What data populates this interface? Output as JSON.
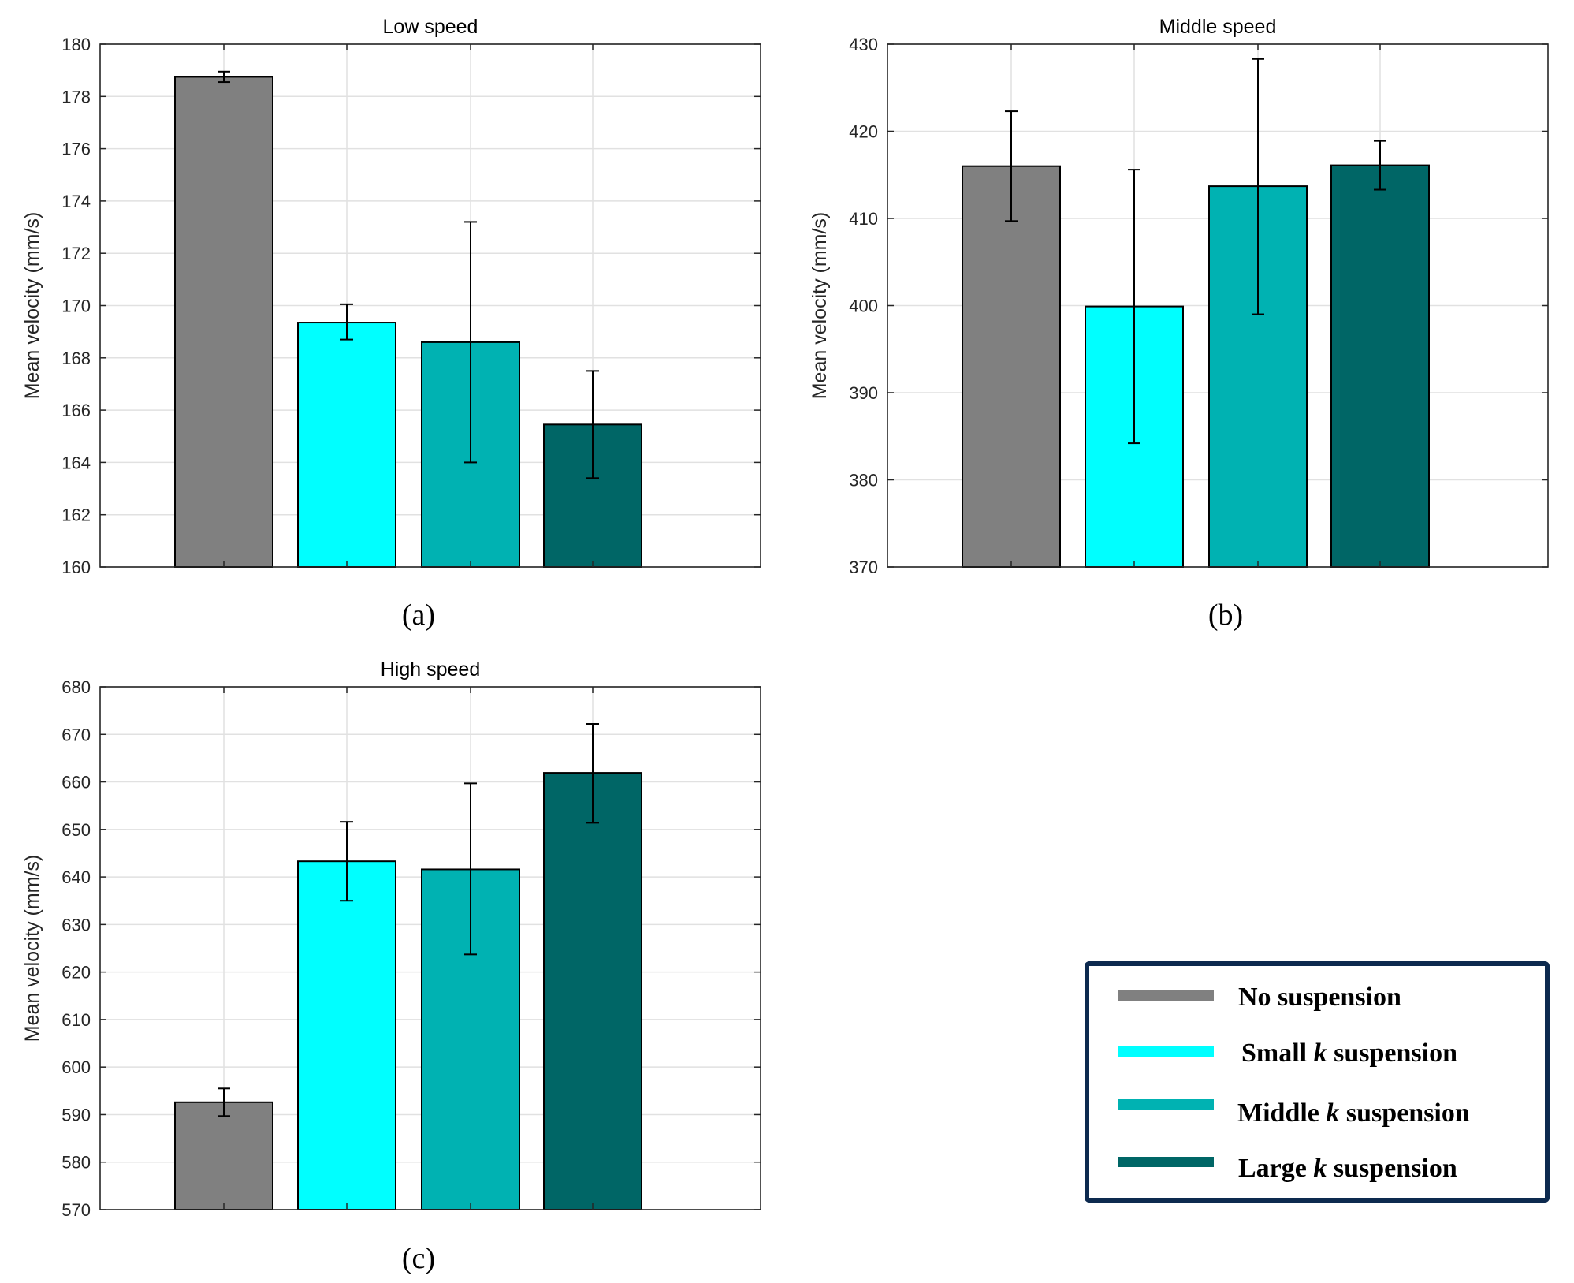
{
  "chart_data": [
    {
      "type": "bar",
      "title": "Low speed",
      "panel_label": "(a)",
      "ylabel": "Mean velocity (mm/s)",
      "ylim": [
        160,
        180
      ],
      "yticks": [
        160,
        162,
        164,
        166,
        168,
        170,
        172,
        174,
        176,
        178,
        180
      ],
      "grid": true,
      "categories": [
        "No suspension",
        "Small k suspension",
        "Middle k suspension",
        "Large k suspension"
      ],
      "values": [
        178.75,
        169.35,
        168.6,
        165.45
      ],
      "error_low": [
        178.55,
        168.7,
        164.0,
        163.4
      ],
      "error_high": [
        178.95,
        170.05,
        173.2,
        167.5
      ]
    },
    {
      "type": "bar",
      "title": "Middle speed",
      "panel_label": "(b)",
      "ylabel": "Mean velocity (mm/s)",
      "ylim": [
        370,
        430
      ],
      "yticks": [
        370,
        380,
        390,
        400,
        410,
        420,
        430
      ],
      "grid": true,
      "categories": [
        "No suspension",
        "Small k suspension",
        "Middle k suspension",
        "Large k suspension"
      ],
      "values": [
        416.0,
        399.9,
        413.7,
        416.1
      ],
      "error_low": [
        409.7,
        384.2,
        399.0,
        413.3
      ],
      "error_high": [
        422.3,
        415.6,
        428.3,
        418.9
      ]
    },
    {
      "type": "bar",
      "title": "High speed",
      "panel_label": "(c)",
      "ylabel": "Mean velocity (mm/s)",
      "ylim": [
        570,
        680
      ],
      "yticks": [
        570,
        580,
        590,
        600,
        610,
        620,
        630,
        640,
        650,
        660,
        670,
        680
      ],
      "grid": true,
      "categories": [
        "No suspension",
        "Small k suspension",
        "Middle k suspension",
        "Large k suspension"
      ],
      "values": [
        592.6,
        643.3,
        641.6,
        661.9
      ],
      "error_low": [
        589.7,
        635.0,
        623.7,
        651.4
      ],
      "error_high": [
        595.5,
        651.6,
        659.7,
        672.2
      ]
    }
  ],
  "legend": {
    "placement": "bottom-right",
    "items": [
      {
        "pre": "No suspension",
        "k": "",
        "post": "",
        "color": "#808080"
      },
      {
        "pre": "Small ",
        "k": "k",
        "post": " suspension",
        "color": "#00ffff"
      },
      {
        "pre": "Middle ",
        "k": "k",
        "post": " suspension",
        "color": "#00b2b2"
      },
      {
        "pre": "Large ",
        "k": "k",
        "post": " suspension",
        "color": "#006666"
      }
    ]
  },
  "colors": [
    "#808080",
    "#00ffff",
    "#00b2b2",
    "#006666"
  ],
  "legend_border_color": "#0d2a4f"
}
